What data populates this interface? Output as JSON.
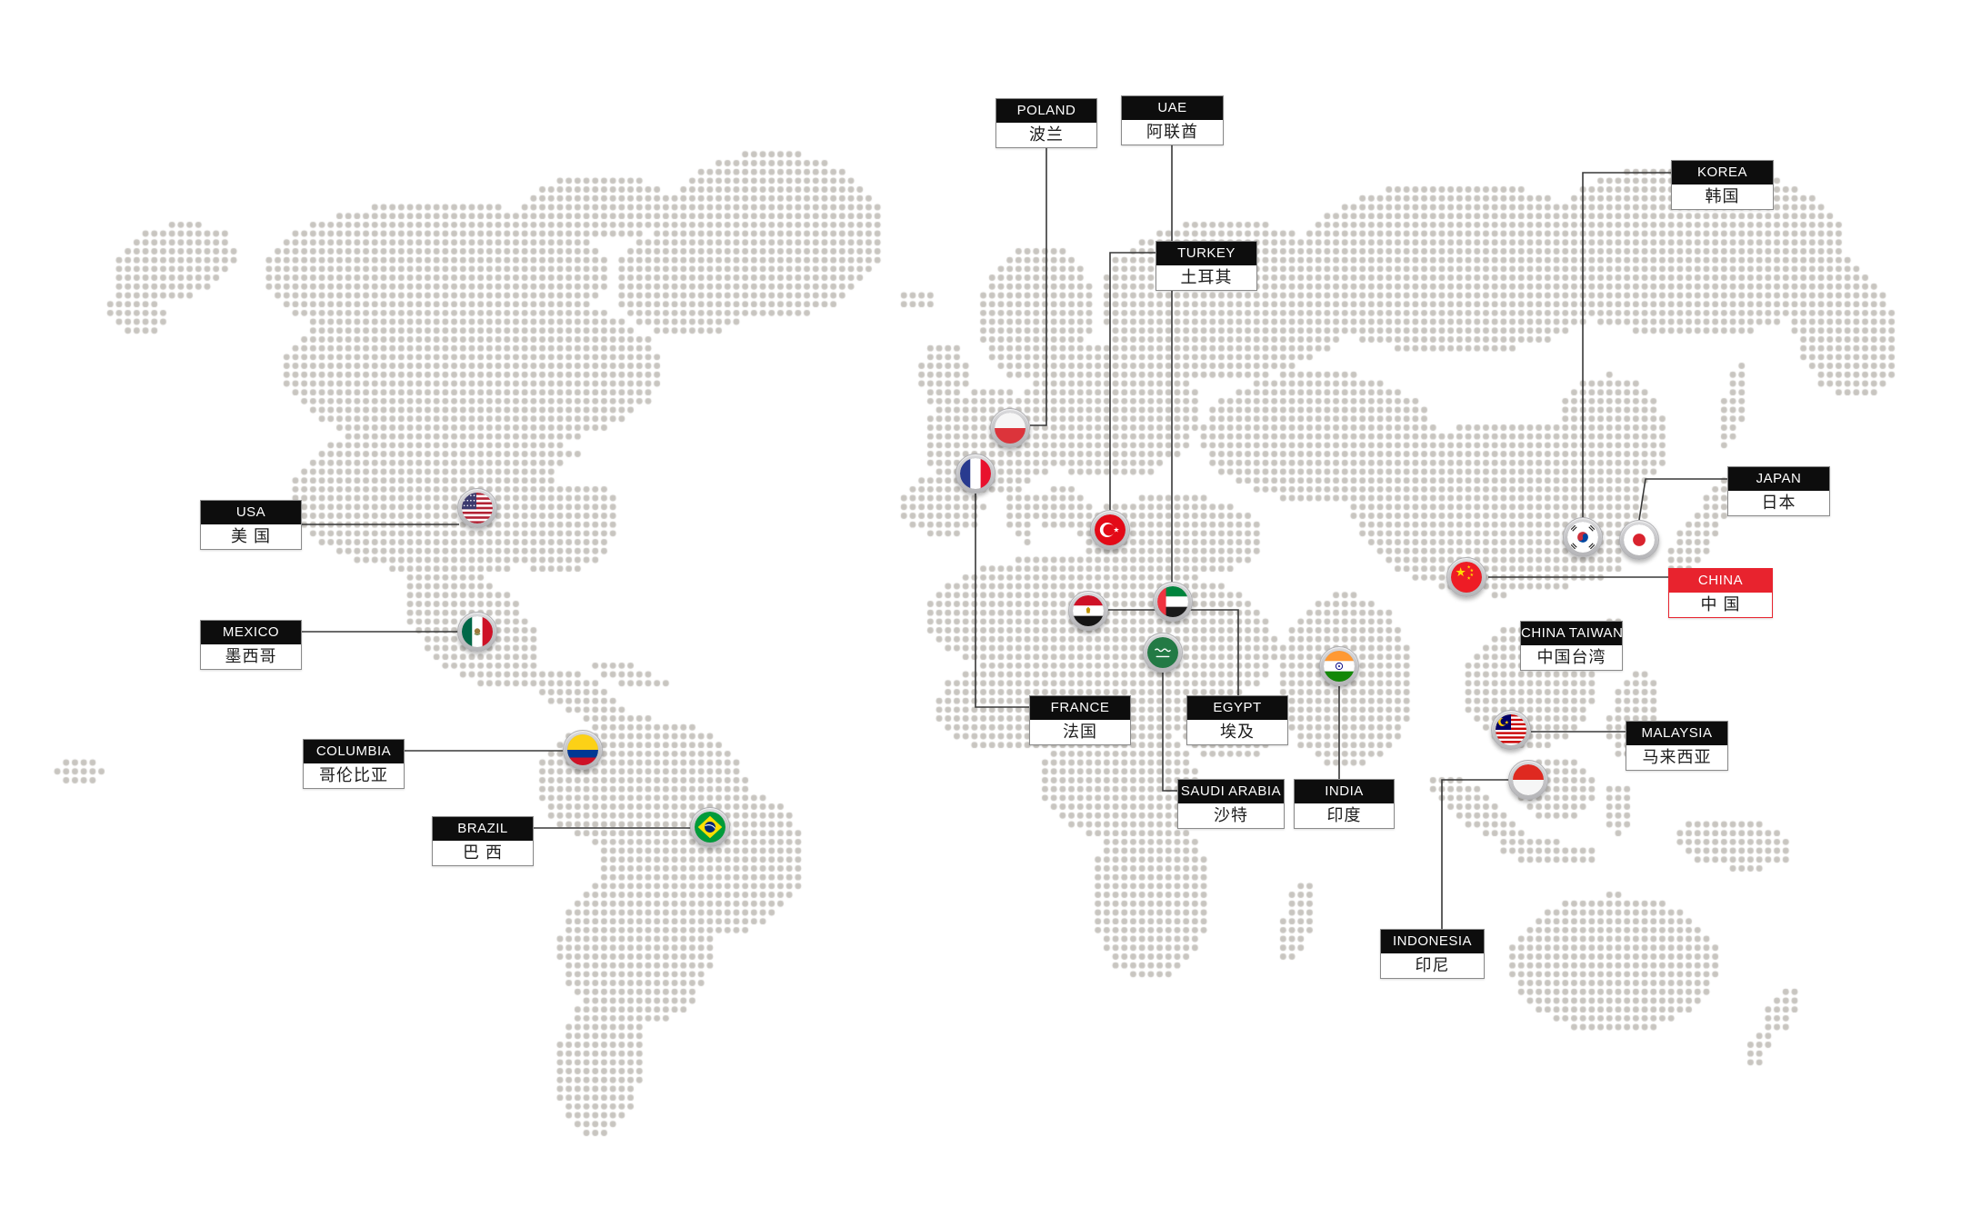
{
  "map": {
    "name": "global-presence-dotted-world-map",
    "dot_color": "#c8c5c0",
    "connector_color": "#383838",
    "label_header_bg": "#0d0d0d",
    "label_header_text_color": "#ffffff",
    "label_body_text_color": "#1c1c1c",
    "highlight_color": "#e8232e"
  },
  "countries": [
    {
      "id": "usa",
      "en": "USA",
      "zh": "美 国",
      "flag_icon": "us-flag-icon",
      "highlight": false
    },
    {
      "id": "mexico",
      "en": "MEXICO",
      "zh": "墨西哥",
      "flag_icon": "mx-flag-icon",
      "highlight": false
    },
    {
      "id": "columbia",
      "en": "COLUMBIA",
      "zh": "哥伦比亚",
      "flag_icon": "co-flag-icon",
      "highlight": false
    },
    {
      "id": "brazil",
      "en": "BRAZIL",
      "zh": "巴 西",
      "flag_icon": "br-flag-icon",
      "highlight": false
    },
    {
      "id": "poland",
      "en": "POLAND",
      "zh": "波兰",
      "flag_icon": "pl-flag-icon",
      "highlight": false
    },
    {
      "id": "france",
      "en": "FRANCE",
      "zh": "法国",
      "flag_icon": "fr-flag-icon",
      "highlight": false
    },
    {
      "id": "turkey",
      "en": "TURKEY",
      "zh": "土耳其",
      "flag_icon": "tr-flag-icon",
      "highlight": false
    },
    {
      "id": "egypt",
      "en": "EGYPT",
      "zh": "埃及",
      "flag_icon": "eg-flag-icon",
      "highlight": false
    },
    {
      "id": "uae",
      "en": "UAE",
      "zh": "阿联酋",
      "flag_icon": "ae-flag-icon",
      "highlight": false
    },
    {
      "id": "saudi-arabia",
      "en": "SAUDI ARABIA",
      "zh": "沙特",
      "flag_icon": "sa-flag-icon",
      "highlight": false
    },
    {
      "id": "india",
      "en": "INDIA",
      "zh": "印度",
      "flag_icon": "in-flag-icon",
      "highlight": false
    },
    {
      "id": "china",
      "en": "CHINA",
      "zh": "中 国",
      "flag_icon": "cn-flag-icon",
      "highlight": true
    },
    {
      "id": "china-taiwan",
      "en": "CHINA TAIWAN",
      "zh": "中国台湾",
      "flag_icon": null,
      "highlight": false
    },
    {
      "id": "korea",
      "en": "KOREA",
      "zh": "韩国",
      "flag_icon": "kr-flag-icon",
      "highlight": false
    },
    {
      "id": "japan",
      "en": "JAPAN",
      "zh": "日本",
      "flag_icon": "jp-flag-icon",
      "highlight": false
    },
    {
      "id": "malaysia",
      "en": "MALAYSIA",
      "zh": "马来西亚",
      "flag_icon": "my-flag-icon",
      "highlight": false
    },
    {
      "id": "indonesia",
      "en": "INDONESIA",
      "zh": "印尼",
      "flag_icon": "id-flag-icon",
      "highlight": false
    }
  ]
}
